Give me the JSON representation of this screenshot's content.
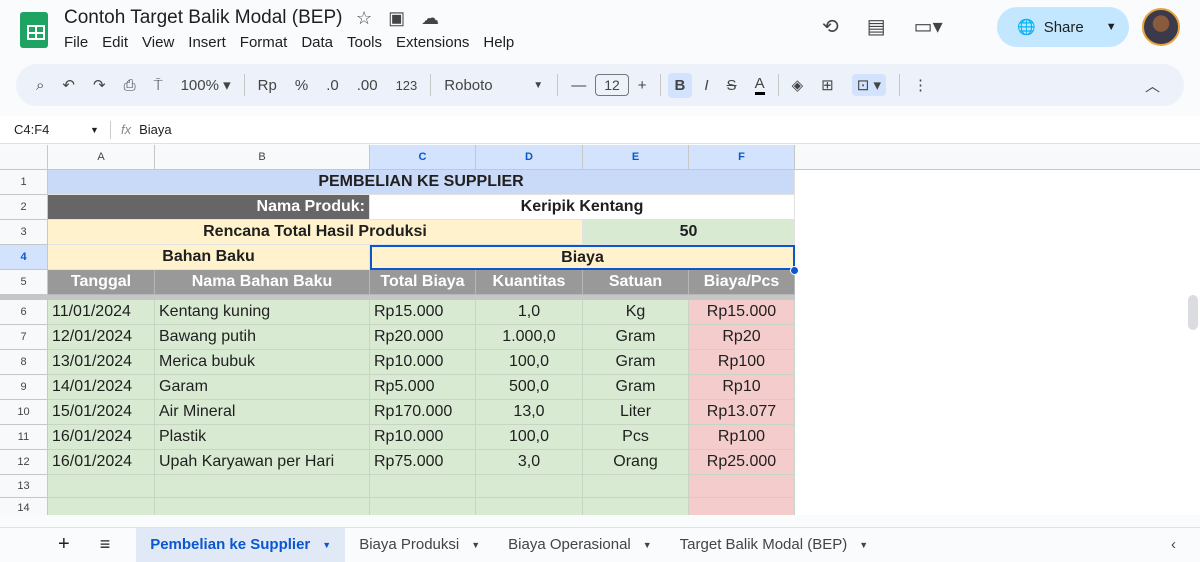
{
  "app": {
    "title": "Contoh Target Balik Modal (BEP)",
    "menu": [
      "File",
      "Edit",
      "View",
      "Insert",
      "Format",
      "Data",
      "Tools",
      "Extensions",
      "Help"
    ],
    "share_label": "Share"
  },
  "toolbar": {
    "zoom": "100%",
    "currency": "Rp",
    "percent": "%",
    "dec_decrease": ".0",
    "dec_increase": ".00",
    "number_format": "123",
    "font": "Roboto",
    "font_size": "12",
    "bold": "B",
    "italic": "I",
    "strike": "S",
    "text_color": "A"
  },
  "formula_bar": {
    "name_box": "C4:F4",
    "fx": "fx",
    "value": "Biaya"
  },
  "grid": {
    "columns": [
      "A",
      "B",
      "C",
      "D",
      "E",
      "F"
    ],
    "selected_columns": [
      "C",
      "D",
      "E",
      "F"
    ],
    "rows": [
      "1",
      "2",
      "3",
      "4",
      "5",
      "6",
      "7",
      "8",
      "9",
      "10",
      "11",
      "12",
      "13",
      "14"
    ],
    "title": "PEMBELIAN KE SUPPLIER",
    "product_label": "Nama Produk:",
    "product_value": "Keripik  Kentang",
    "plan_label": "Rencana Total Hasil Produksi",
    "plan_value": "50",
    "group_left": "Bahan Baku",
    "group_right": "Biaya",
    "headers": [
      "Tanggal",
      "Nama Bahan Baku",
      "Total Biaya",
      "Kuantitas",
      "Satuan",
      "Biaya/Pcs"
    ],
    "data": [
      [
        "11/01/2024",
        "Kentang kuning",
        "Rp15.000",
        "1,0",
        "Kg",
        "Rp15.000"
      ],
      [
        "12/01/2024",
        "Bawang putih",
        "Rp20.000",
        "1.000,0",
        "Gram",
        "Rp20"
      ],
      [
        "13/01/2024",
        "Merica bubuk",
        "Rp10.000",
        "100,0",
        "Gram",
        "Rp100"
      ],
      [
        "14/01/2024",
        "Garam",
        "Rp5.000",
        "500,0",
        "Gram",
        "Rp10"
      ],
      [
        "15/01/2024",
        "Air Mineral",
        "Rp170.000",
        "13,0",
        "Liter",
        "Rp13.077"
      ],
      [
        "16/01/2024",
        "Plastik",
        "Rp10.000",
        "100,0",
        "Pcs",
        "Rp100"
      ],
      [
        "16/01/2024",
        "Upah Karyawan per Hari",
        "Rp75.000",
        "3,0",
        "Orang",
        "Rp25.000"
      ]
    ]
  },
  "colors": {
    "title_bg": "#c9daf8",
    "dark_bg": "#666666",
    "cream": "#fff2cc",
    "green": "#d9ead3",
    "header_gray": "#999999",
    "pink": "#f4cccc",
    "accent": "#0b57d0"
  },
  "sheets": [
    {
      "label": "Pembelian ke Supplier",
      "active": true
    },
    {
      "label": "Biaya Produksi"
    },
    {
      "label": "Biaya Operasional"
    },
    {
      "label": "Target Balik Modal (BEP)"
    }
  ]
}
